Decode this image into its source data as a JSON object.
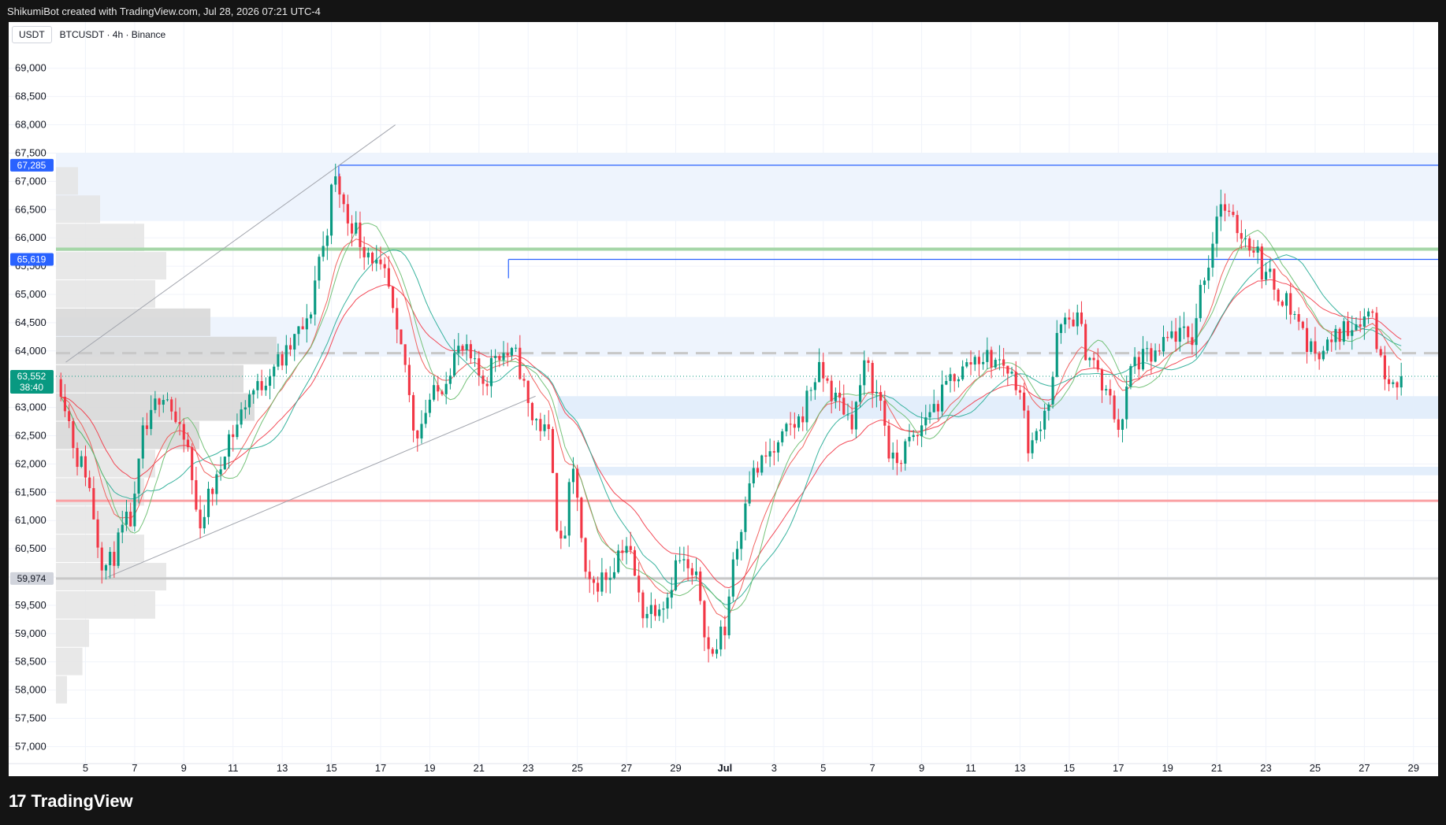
{
  "header": {
    "credit": "ShikumiBot created with TradingView.com, Jul 28, 2026 07:21 UTC-4"
  },
  "toolbar": {
    "quote_currency": "USDT",
    "symbol_line": "BTCUSDT · 4h · Binance"
  },
  "footer": {
    "brand": "TradingView",
    "logo_glyph": "17"
  },
  "chart_data": {
    "type": "candlestick",
    "symbol": "BTCUSDT",
    "timeframe": "4h",
    "exchange": "Binance",
    "currency": "USDT",
    "ylim": [
      56700,
      69400
    ],
    "y_ticks": [
      57000,
      57500,
      58000,
      58500,
      59000,
      59500,
      60000,
      60500,
      61000,
      61500,
      62000,
      62500,
      63000,
      63500,
      64000,
      64500,
      65000,
      65500,
      66000,
      66500,
      67000,
      67500,
      68000,
      68500,
      69000
    ],
    "x_range_days": [
      3.8,
      60.0
    ],
    "x_ticks": [
      {
        "day": 5,
        "label": "5"
      },
      {
        "day": 7,
        "label": "7"
      },
      {
        "day": 9,
        "label": "9"
      },
      {
        "day": 11,
        "label": "11"
      },
      {
        "day": 13,
        "label": "13"
      },
      {
        "day": 15,
        "label": "15"
      },
      {
        "day": 17,
        "label": "17"
      },
      {
        "day": 19,
        "label": "19"
      },
      {
        "day": 21,
        "label": "21"
      },
      {
        "day": 23,
        "label": "23"
      },
      {
        "day": 25,
        "label": "25"
      },
      {
        "day": 27,
        "label": "27"
      },
      {
        "day": 29,
        "label": "29"
      },
      {
        "day": 31,
        "label": "Jul"
      },
      {
        "day": 33,
        "label": "3"
      },
      {
        "day": 35,
        "label": "5"
      },
      {
        "day": 37,
        "label": "7"
      },
      {
        "day": 39,
        "label": "9"
      },
      {
        "day": 41,
        "label": "11"
      },
      {
        "day": 43,
        "label": "13"
      },
      {
        "day": 45,
        "label": "15"
      },
      {
        "day": 47,
        "label": "17"
      },
      {
        "day": 49,
        "label": "19"
      },
      {
        "day": 51,
        "label": "21"
      },
      {
        "day": 53,
        "label": "23"
      },
      {
        "day": 55,
        "label": "25"
      },
      {
        "day": 57,
        "label": "27"
      },
      {
        "day": 59,
        "label": "29"
      }
    ],
    "price_anchors": [
      [
        4.0,
        63500
      ],
      [
        5.0,
        62000
      ],
      [
        6.0,
        60200
      ],
      [
        7.0,
        61000
      ],
      [
        7.6,
        62600
      ],
      [
        8.3,
        63300
      ],
      [
        9.2,
        62400
      ],
      [
        9.8,
        61000
      ],
      [
        10.4,
        61600
      ],
      [
        11.0,
        62500
      ],
      [
        12.0,
        63300
      ],
      [
        13.0,
        63800
      ],
      [
        14.1,
        64400
      ],
      [
        14.8,
        65800
      ],
      [
        15.3,
        67000
      ],
      [
        15.9,
        66300
      ],
      [
        16.6,
        65800
      ],
      [
        17.3,
        65300
      ],
      [
        18.0,
        64000
      ],
      [
        18.6,
        62600
      ],
      [
        19.3,
        63200
      ],
      [
        20.4,
        64000
      ],
      [
        21.4,
        63500
      ],
      [
        21.9,
        64000
      ],
      [
        22.6,
        63900
      ],
      [
        23.4,
        62800
      ],
      [
        24.0,
        62500
      ],
      [
        24.5,
        60500
      ],
      [
        25.0,
        61800
      ],
      [
        25.6,
        59800
      ],
      [
        26.3,
        60000
      ],
      [
        27.1,
        60600
      ],
      [
        27.9,
        59400
      ],
      [
        28.7,
        59600
      ],
      [
        29.3,
        60300
      ],
      [
        30.0,
        59900
      ],
      [
        30.6,
        58600
      ],
      [
        31.1,
        59000
      ],
      [
        31.6,
        60500
      ],
      [
        32.2,
        61800
      ],
      [
        33.1,
        62200
      ],
      [
        34.0,
        62700
      ],
      [
        35.0,
        63600
      ],
      [
        35.8,
        63100
      ],
      [
        36.3,
        62800
      ],
      [
        36.9,
        63700
      ],
      [
        37.4,
        63200
      ],
      [
        38.0,
        62000
      ],
      [
        38.8,
        62400
      ],
      [
        39.6,
        63000
      ],
      [
        40.6,
        63600
      ],
      [
        41.5,
        63900
      ],
      [
        42.4,
        63800
      ],
      [
        43.0,
        63500
      ],
      [
        43.6,
        62300
      ],
      [
        44.3,
        63100
      ],
      [
        44.8,
        64400
      ],
      [
        45.4,
        64600
      ],
      [
        46.0,
        63900
      ],
      [
        46.7,
        63200
      ],
      [
        47.2,
        62700
      ],
      [
        47.8,
        63800
      ],
      [
        48.6,
        63900
      ],
      [
        49.5,
        64300
      ],
      [
        50.1,
        64200
      ],
      [
        50.7,
        65400
      ],
      [
        51.3,
        66600
      ],
      [
        51.9,
        66200
      ],
      [
        52.6,
        65900
      ],
      [
        53.2,
        65300
      ],
      [
        53.8,
        65000
      ],
      [
        54.4,
        64600
      ],
      [
        55.0,
        64000
      ],
      [
        55.7,
        64100
      ],
      [
        56.4,
        64400
      ],
      [
        57.0,
        64600
      ],
      [
        57.5,
        64700
      ],
      [
        57.8,
        63800
      ],
      [
        58.1,
        63600
      ],
      [
        58.5,
        63550
      ]
    ],
    "moving_averages": [
      {
        "color": "#f23645",
        "kind": "ema-slow"
      },
      {
        "color": "#ef5350",
        "kind": "ema-fast"
      },
      {
        "color": "#22ab94",
        "kind": "sma-slow"
      },
      {
        "color": "#66bb6a",
        "kind": "sma-fast"
      }
    ],
    "horizontal_levels": [
      {
        "price": 65800,
        "color": "#a5d6a7",
        "width": 4
      },
      {
        "price": 61350,
        "color": "#faa1a4",
        "width": 3
      },
      {
        "price": 59974,
        "color": "#c8c8c8",
        "width": 3
      },
      {
        "price": 63960,
        "color": "#c8c8c8",
        "width": 3,
        "dashed": true
      }
    ],
    "zones": [
      {
        "from": 66300,
        "to": 67500,
        "color": "#eef4fd"
      },
      {
        "from": 63900,
        "to": 64600,
        "color": "#eef4fd"
      },
      {
        "from": 62800,
        "to": 63200,
        "color": "#e3eefb",
        "start_day": 24.2
      },
      {
        "from": 61800,
        "to": 61950,
        "color": "#e3eefb",
        "start_day": 25.0
      }
    ],
    "rays": [
      {
        "day": 15.3,
        "price": 67285,
        "color": "#2962ff"
      },
      {
        "day": 22.2,
        "price": 65619,
        "color": "#2962ff"
      }
    ],
    "trendlines": [
      {
        "from": [
          4.2,
          63800
        ],
        "to": [
          17.6,
          68000
        ],
        "color": "#a3a6ae"
      },
      {
        "from": [
          5.9,
          60000
        ],
        "to": [
          23.3,
          63200
        ],
        "color": "#a3a6ae"
      }
    ],
    "price_tags": [
      {
        "price": 67285,
        "text": "67,285",
        "bg": "#2962ff",
        "fg": "#ffffff"
      },
      {
        "price": 65619,
        "text": "65,619",
        "bg": "#2962ff",
        "fg": "#ffffff"
      },
      {
        "price": 63552,
        "text": "63,552",
        "sub": "38:40",
        "bg": "#089981",
        "fg": "#ffffff"
      },
      {
        "price": 59974,
        "text": "59,974",
        "bg": "#d1d4dc",
        "fg": "#131722"
      }
    ],
    "last_price": 63552,
    "volume_profile_rows": [
      {
        "price": 67000,
        "vol": 0.1
      },
      {
        "price": 66500,
        "vol": 0.2
      },
      {
        "price": 66000,
        "vol": 0.4
      },
      {
        "price": 65500,
        "vol": 0.5
      },
      {
        "price": 65000,
        "vol": 0.45
      },
      {
        "price": 64500,
        "vol": 0.7
      },
      {
        "price": 64000,
        "vol": 1.0
      },
      {
        "price": 63500,
        "vol": 0.85
      },
      {
        "price": 63000,
        "vol": 0.9
      },
      {
        "price": 62500,
        "vol": 0.65
      },
      {
        "price": 62000,
        "vol": 0.45
      },
      {
        "price": 61500,
        "vol": 0.4
      },
      {
        "price": 61000,
        "vol": 0.35
      },
      {
        "price": 60500,
        "vol": 0.4
      },
      {
        "price": 60000,
        "vol": 0.5
      },
      {
        "price": 59500,
        "vol": 0.45
      },
      {
        "price": 59000,
        "vol": 0.15
      },
      {
        "price": 58500,
        "vol": 0.12
      },
      {
        "price": 58000,
        "vol": 0.05
      }
    ]
  }
}
